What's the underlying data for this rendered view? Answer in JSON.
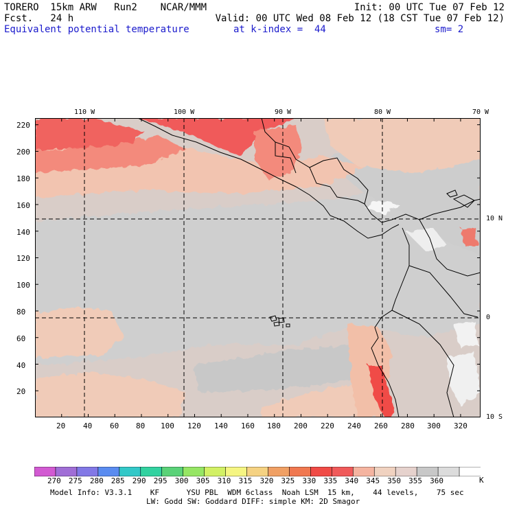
{
  "header": {
    "line1_left": "TORERO  15km ARW   Run2    NCAR/MMM",
    "line1_right": "Init: 00 UTC Tue 07 Feb 12",
    "line2_left": "Fcst.   24 h",
    "line2_right": "Valid: 00 UTC Wed 08 Feb 12 (18 CST Tue 07 Feb 12)",
    "field_name": "Equivalent potential temperature",
    "level": "at k-index =  44",
    "smoothing": "sm= 2"
  },
  "map": {
    "lon_labels": [
      "110 W",
      "100 W",
      "90 W",
      "80 W",
      "70 W"
    ],
    "lat_labels": [
      "10 N",
      "0",
      "10 S"
    ],
    "y_ticks": [
      "20",
      "40",
      "60",
      "80",
      "100",
      "120",
      "140",
      "160",
      "180",
      "200",
      "220"
    ],
    "x_ticks": [
      "20",
      "40",
      "60",
      "80",
      "100",
      "120",
      "140",
      "160",
      "180",
      "200",
      "220",
      "240",
      "260",
      "280",
      "300",
      "320"
    ],
    "grid_x_max": 335,
    "grid_y_max": 225
  },
  "colorbar": {
    "labels": [
      "270",
      "275",
      "280",
      "285",
      "290",
      "295",
      "300",
      "305",
      "310",
      "315",
      "320",
      "325",
      "330",
      "335",
      "340",
      "345",
      "350",
      "355",
      "360"
    ],
    "unit": "K",
    "colors": [
      "#d25ad2",
      "#a06ed6",
      "#8278e6",
      "#5a8cf0",
      "#32c8c8",
      "#32d2a0",
      "#5ad278",
      "#96e664",
      "#d2f064",
      "#f5f582",
      "#f5d282",
      "#f0a064",
      "#f07850",
      "#f04b46",
      "#f05a5a",
      "#f5b4a0",
      "#f0d2c0",
      "#e6d2cd",
      "#c8c8c8",
      "#dcdcdc",
      "#ffffff"
    ]
  },
  "footer": {
    "line1": "Model Info: V3.3.1    KF      YSU PBL  WDM 6class  Noah LSM  15 km,    44 levels,    75 sec",
    "line2": "LW: Godd SW: Goddard DIFF: simple KM: 2D Smagor"
  }
}
